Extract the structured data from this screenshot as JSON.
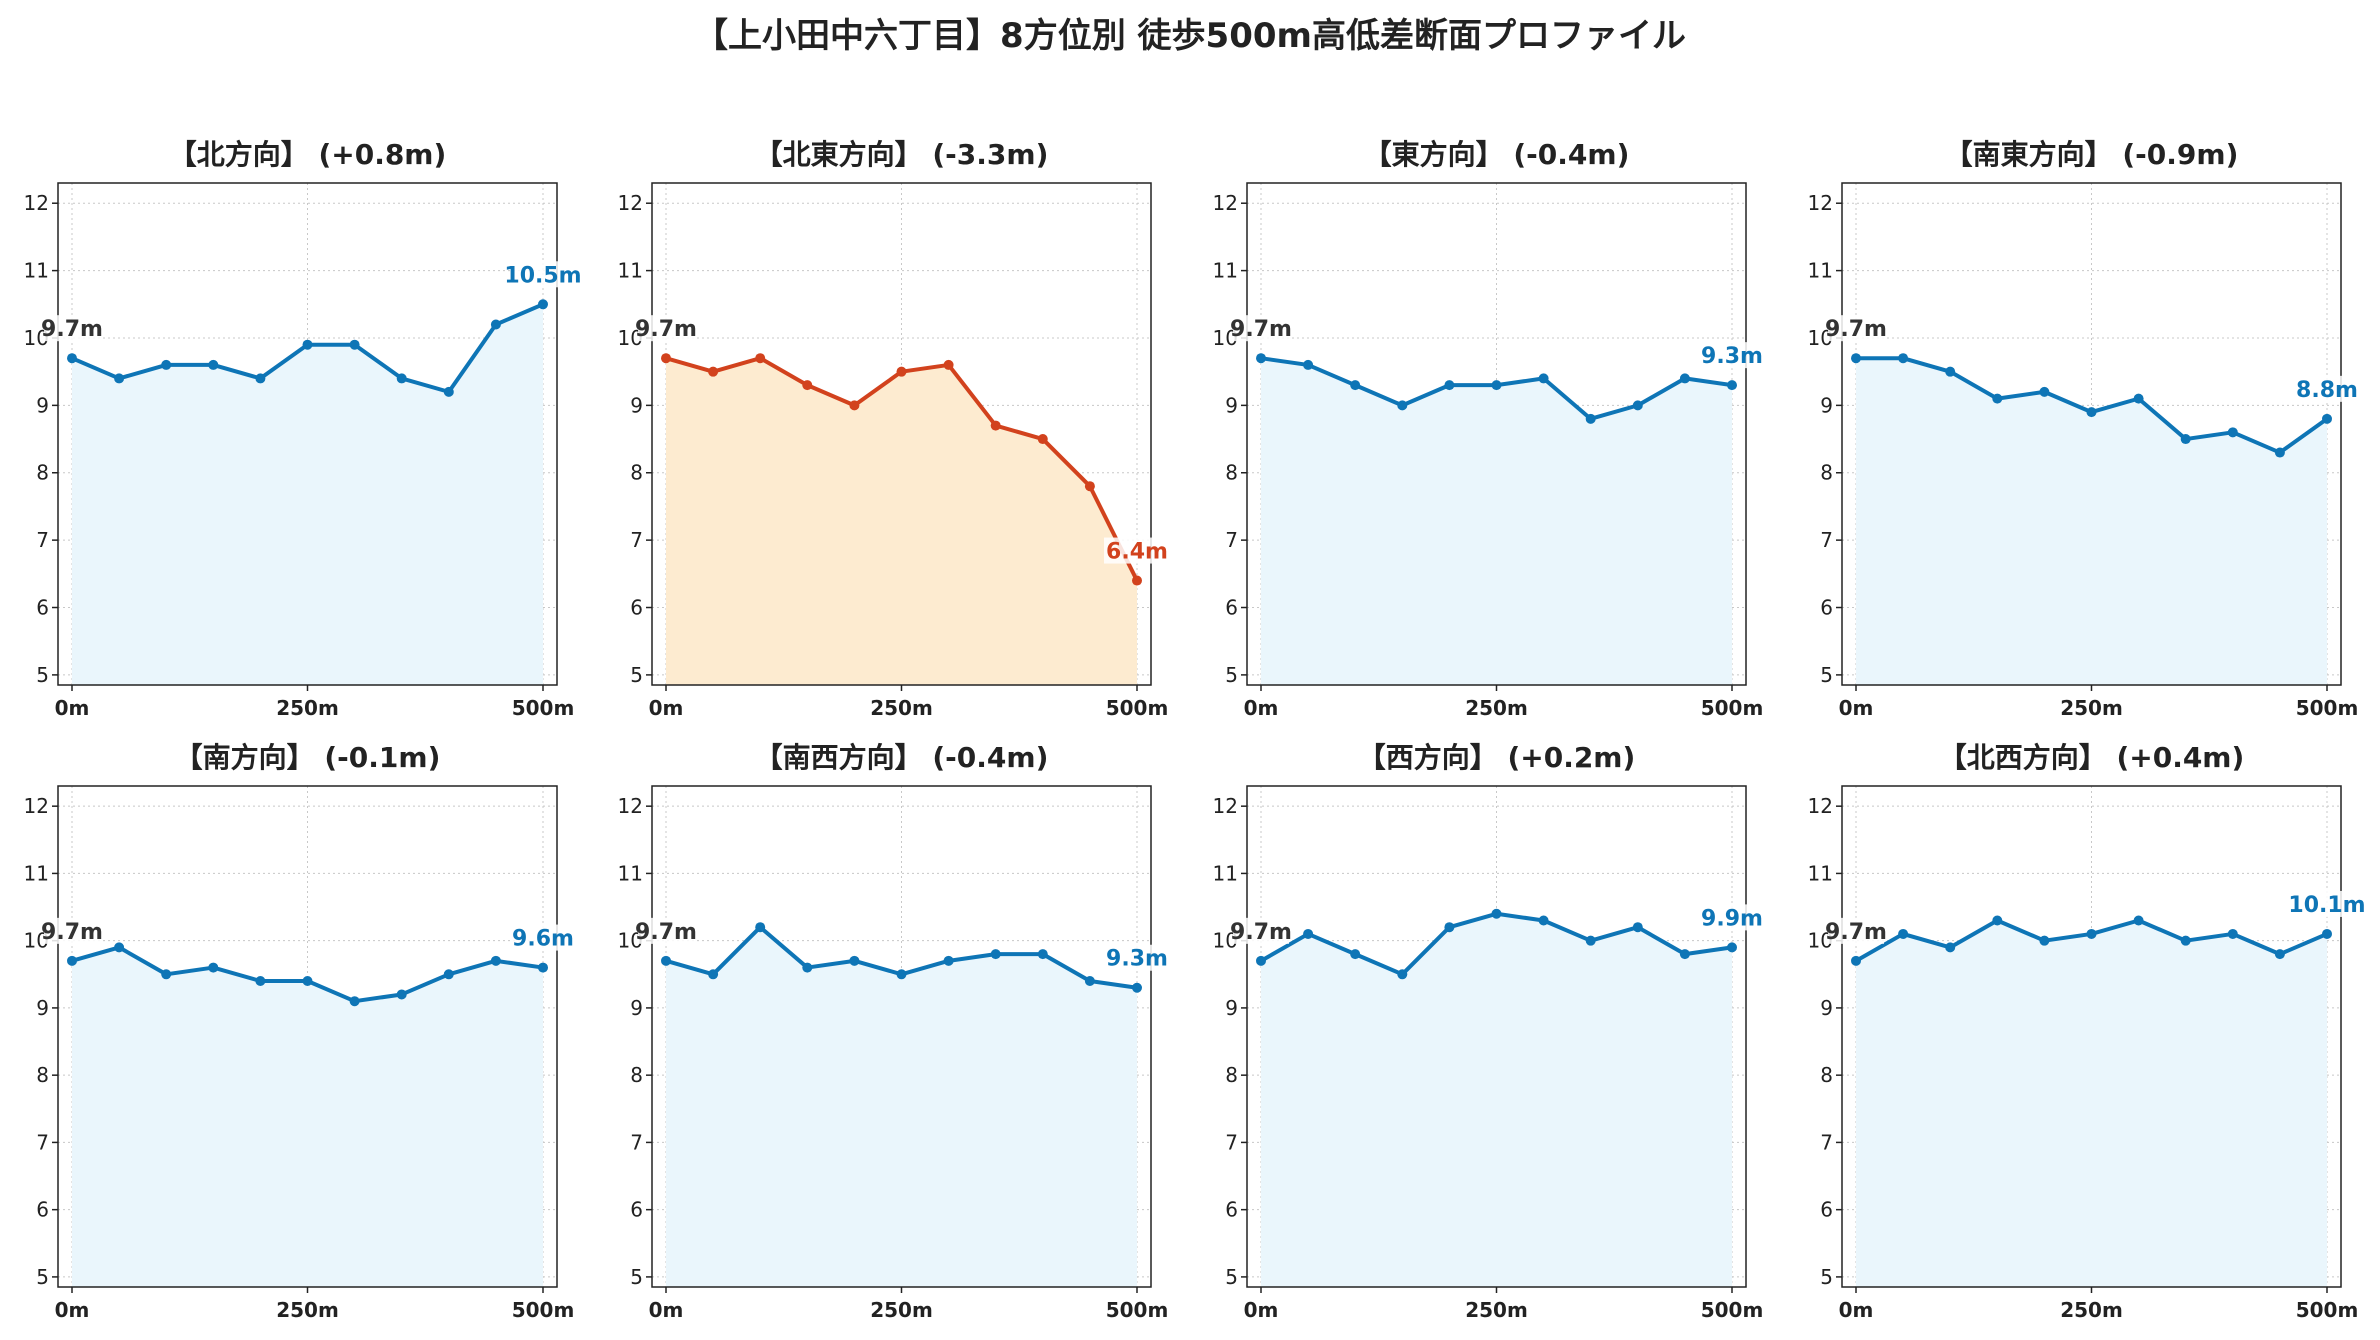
{
  "title": "【上小田中六丁目】8方位別 徒歩500m高低差断面プロファイル",
  "colors": {
    "normal_line": "#0e75b6",
    "normal_fill": "#eaf6fc",
    "highlight_line": "#d2421d",
    "highlight_fill": "#fdebd0",
    "start_label": "#333333",
    "grid": "#c8c8c8"
  },
  "chart_data": [
    {
      "type": "area",
      "title": "【北方向】 (+0.8m)",
      "x": [
        0,
        50,
        100,
        150,
        200,
        250,
        300,
        350,
        400,
        450,
        500
      ],
      "values": [
        9.7,
        9.4,
        9.6,
        9.6,
        9.4,
        9.9,
        9.9,
        9.4,
        9.2,
        10.2,
        10.5
      ],
      "start_label": "9.7m",
      "end_label": "10.5m",
      "highlight": false,
      "ylim": [
        4.85,
        12.3
      ],
      "yticks": [
        5,
        6,
        7,
        8,
        9,
        10,
        11,
        12
      ],
      "xticks": [
        0,
        250,
        500
      ],
      "xtick_labels": [
        "0m",
        "250m",
        "500m"
      ],
      "grid": true
    },
    {
      "type": "area",
      "title": "【北東方向】 (-3.3m)",
      "x": [
        0,
        50,
        100,
        150,
        200,
        250,
        300,
        350,
        400,
        450,
        500
      ],
      "values": [
        9.7,
        9.5,
        9.7,
        9.3,
        9.0,
        9.5,
        9.6,
        8.7,
        8.5,
        7.8,
        6.4
      ],
      "start_label": "9.7m",
      "end_label": "6.4m",
      "highlight": true,
      "ylim": [
        4.85,
        12.3
      ],
      "yticks": [
        5,
        6,
        7,
        8,
        9,
        10,
        11,
        12
      ],
      "xticks": [
        0,
        250,
        500
      ],
      "xtick_labels": [
        "0m",
        "250m",
        "500m"
      ],
      "grid": true
    },
    {
      "type": "area",
      "title": "【東方向】 (-0.4m)",
      "x": [
        0,
        50,
        100,
        150,
        200,
        250,
        300,
        350,
        400,
        450,
        500
      ],
      "values": [
        9.7,
        9.6,
        9.3,
        9.0,
        9.3,
        9.3,
        9.4,
        8.8,
        9.0,
        9.4,
        9.3
      ],
      "start_label": "9.7m",
      "end_label": "9.3m",
      "highlight": false,
      "ylim": [
        4.85,
        12.3
      ],
      "yticks": [
        5,
        6,
        7,
        8,
        9,
        10,
        11,
        12
      ],
      "xticks": [
        0,
        250,
        500
      ],
      "xtick_labels": [
        "0m",
        "250m",
        "500m"
      ],
      "grid": true
    },
    {
      "type": "area",
      "title": "【南東方向】 (-0.9m)",
      "x": [
        0,
        50,
        100,
        150,
        200,
        250,
        300,
        350,
        400,
        450,
        500
      ],
      "values": [
        9.7,
        9.7,
        9.5,
        9.1,
        9.2,
        8.9,
        9.1,
        8.5,
        8.6,
        8.3,
        8.8
      ],
      "start_label": "9.7m",
      "end_label": "8.8m",
      "highlight": false,
      "ylim": [
        4.85,
        12.3
      ],
      "yticks": [
        5,
        6,
        7,
        8,
        9,
        10,
        11,
        12
      ],
      "xticks": [
        0,
        250,
        500
      ],
      "xtick_labels": [
        "0m",
        "250m",
        "500m"
      ],
      "grid": true
    },
    {
      "type": "area",
      "title": "【南方向】 (-0.1m)",
      "x": [
        0,
        50,
        100,
        150,
        200,
        250,
        300,
        350,
        400,
        450,
        500
      ],
      "values": [
        9.7,
        9.9,
        9.5,
        9.6,
        9.4,
        9.4,
        9.1,
        9.2,
        9.5,
        9.7,
        9.6
      ],
      "start_label": "9.7m",
      "end_label": "9.6m",
      "highlight": false,
      "ylim": [
        4.85,
        12.3
      ],
      "yticks": [
        5,
        6,
        7,
        8,
        9,
        10,
        11,
        12
      ],
      "xticks": [
        0,
        250,
        500
      ],
      "xtick_labels": [
        "0m",
        "250m",
        "500m"
      ],
      "grid": true
    },
    {
      "type": "area",
      "title": "【南西方向】 (-0.4m)",
      "x": [
        0,
        50,
        100,
        150,
        200,
        250,
        300,
        350,
        400,
        450,
        500
      ],
      "values": [
        9.7,
        9.5,
        10.2,
        9.6,
        9.7,
        9.5,
        9.7,
        9.8,
        9.8,
        9.4,
        9.3
      ],
      "start_label": "9.7m",
      "end_label": "9.3m",
      "highlight": false,
      "ylim": [
        4.85,
        12.3
      ],
      "yticks": [
        5,
        6,
        7,
        8,
        9,
        10,
        11,
        12
      ],
      "xticks": [
        0,
        250,
        500
      ],
      "xtick_labels": [
        "0m",
        "250m",
        "500m"
      ],
      "grid": true
    },
    {
      "type": "area",
      "title": "【西方向】 (+0.2m)",
      "x": [
        0,
        50,
        100,
        150,
        200,
        250,
        300,
        350,
        400,
        450,
        500
      ],
      "values": [
        9.7,
        10.1,
        9.8,
        9.5,
        10.2,
        10.4,
        10.3,
        10.0,
        10.2,
        9.8,
        9.9
      ],
      "start_label": "9.7m",
      "end_label": "9.9m",
      "highlight": false,
      "ylim": [
        4.85,
        12.3
      ],
      "yticks": [
        5,
        6,
        7,
        8,
        9,
        10,
        11,
        12
      ],
      "xticks": [
        0,
        250,
        500
      ],
      "xtick_labels": [
        "0m",
        "250m",
        "500m"
      ],
      "grid": true
    },
    {
      "type": "area",
      "title": "【北西方向】 (+0.4m)",
      "x": [
        0,
        50,
        100,
        150,
        200,
        250,
        300,
        350,
        400,
        450,
        500
      ],
      "values": [
        9.7,
        10.1,
        9.9,
        10.3,
        10.0,
        10.1,
        10.3,
        10.0,
        10.1,
        9.8,
        10.1
      ],
      "start_label": "9.7m",
      "end_label": "10.1m",
      "highlight": false,
      "ylim": [
        4.85,
        12.3
      ],
      "yticks": [
        5,
        6,
        7,
        8,
        9,
        10,
        11,
        12
      ],
      "xticks": [
        0,
        250,
        500
      ],
      "xtick_labels": [
        "0m",
        "250m",
        "500m"
      ],
      "grid": true
    }
  ]
}
